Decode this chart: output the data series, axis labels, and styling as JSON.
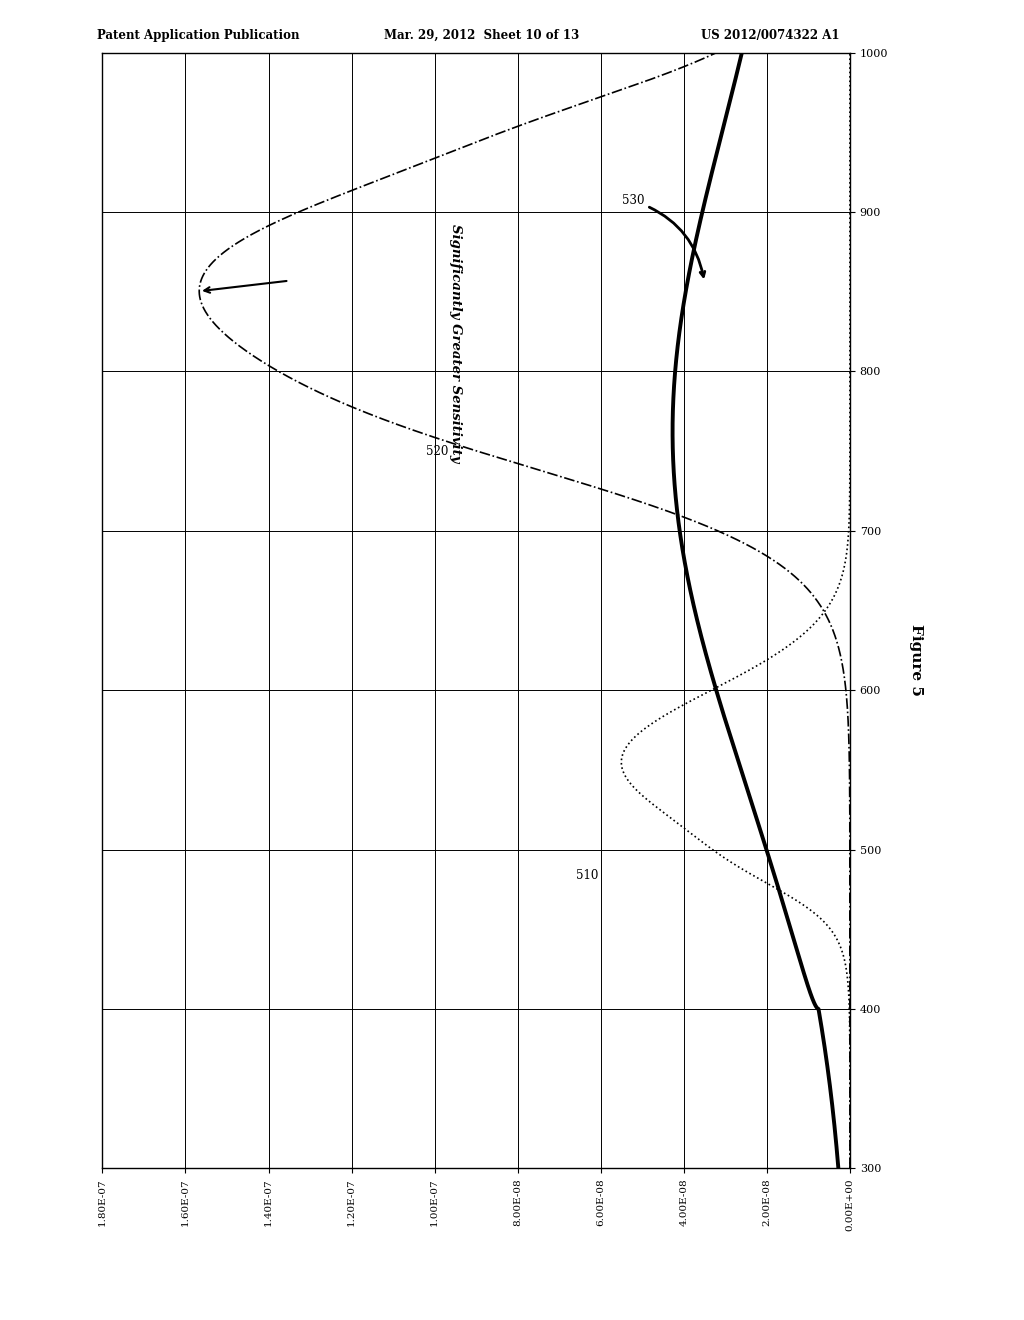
{
  "header_left": "Patent Application Publication",
  "header_center": "Mar. 29, 2012  Sheet 10 of 13",
  "header_right": "US 2012/0074322 A1",
  "figure_label": "Figure 5",
  "wavelength_min": 300,
  "wavelength_max": 1000,
  "wavelength_ticks": [
    300,
    400,
    500,
    600,
    700,
    800,
    900,
    1000
  ],
  "current_min": 0.0,
  "current_max": 1.8e-07,
  "current_ticks": [
    1.8e-07,
    1.6e-07,
    1.4e-07,
    1.2e-07,
    1e-07,
    8e-08,
    6e-08,
    4e-08,
    2e-08,
    0.0
  ],
  "current_tick_labels": [
    "1.80E-07",
    "1.60E-07",
    "1.40E-07",
    "1.20E-07",
    "1.00E-07",
    "8.00E-08",
    "6.00E-08",
    "4.00E-08",
    "2.00E-08",
    "0.00E+00"
  ],
  "annotation_text": "Significantly Greater Sensitivity",
  "label_510": "510",
  "label_520": "520",
  "label_530": "530"
}
